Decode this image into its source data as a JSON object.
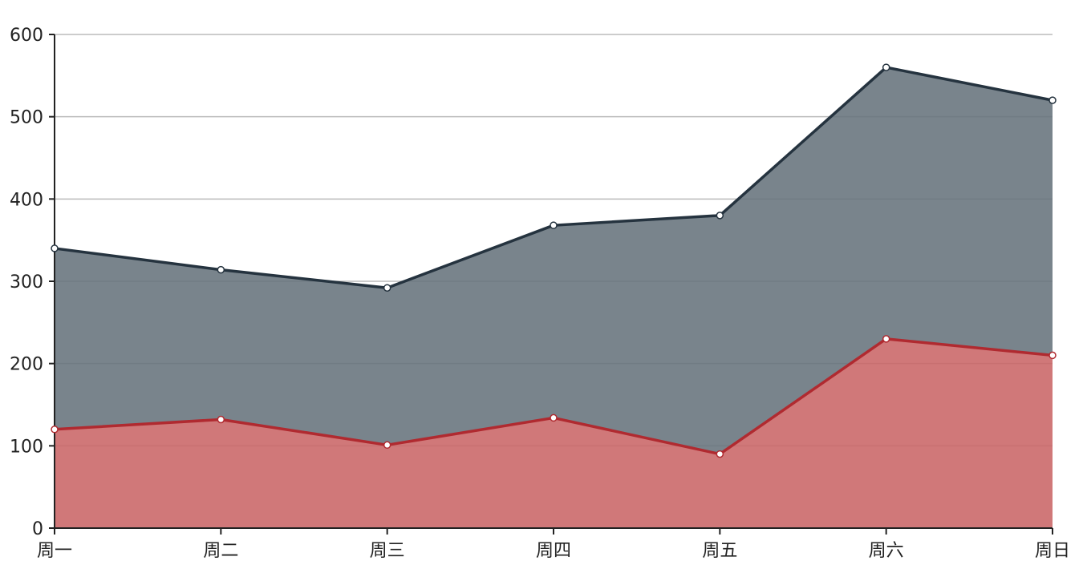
{
  "chart_data": {
    "type": "area",
    "stacked": true,
    "categories": [
      "周一",
      "周二",
      "周三",
      "周四",
      "周五",
      "周六",
      "周日"
    ],
    "series": [
      {
        "values": [
          120,
          132,
          101,
          134,
          90,
          230,
          210
        ],
        "line_color": "#B02A30",
        "fill_color": "#C96567"
      },
      {
        "values": [
          220,
          182,
          191,
          234,
          290,
          330,
          310
        ],
        "line_color": "#25333F",
        "fill_color": "#67737C"
      }
    ],
    "ylim": [
      0,
      600
    ],
    "yticks": [
      0,
      100,
      200,
      300,
      400,
      500,
      600
    ],
    "grid": true,
    "colors": {
      "grid": "#BBBBBB",
      "axis": "#222222",
      "tick_text": "#222222",
      "point_fill": "#FFFFFF"
    }
  }
}
